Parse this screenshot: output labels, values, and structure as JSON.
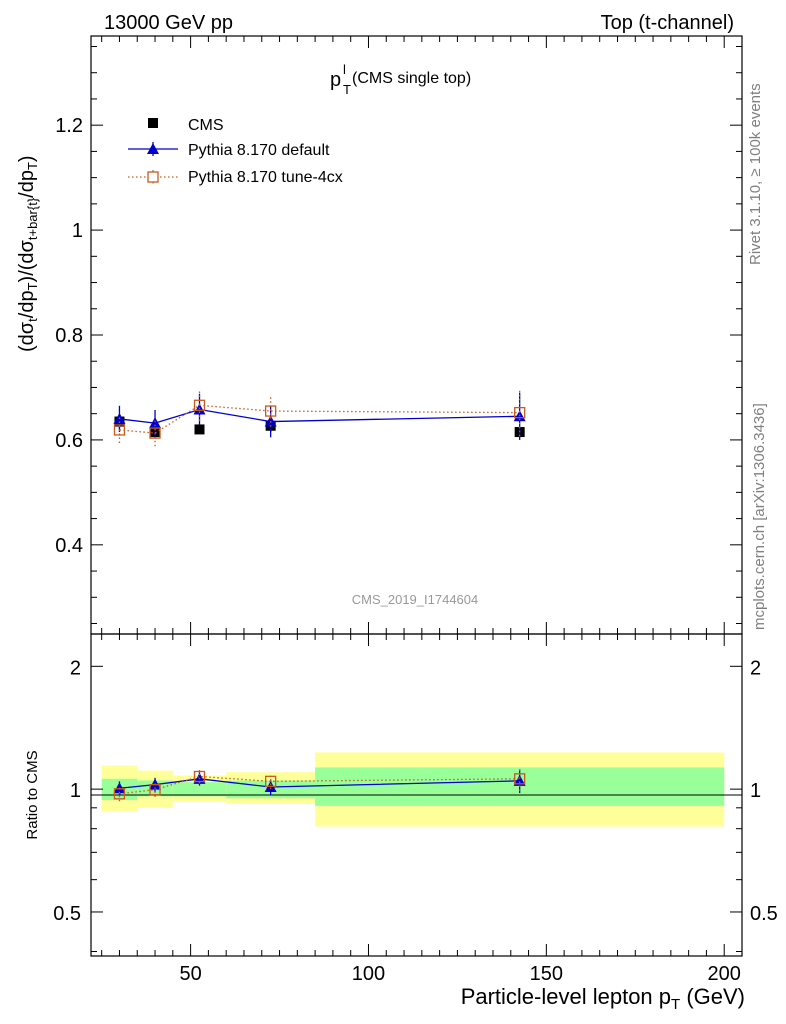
{
  "header": {
    "left": "13000 GeV pp",
    "right": "Top (t-channel)"
  },
  "side_labels": {
    "rivet": "Rivet 3.1.10, ≥ 100k events",
    "mcplots": "mcplots.cern.ch [arXiv:1306.3436]"
  },
  "chart_data": [
    {
      "type": "scatter",
      "title_main": "p",
      "title_sup": "l",
      "title_sub": "T",
      "title_rest": " (CMS single top)",
      "watermark": "CMS_2019_I1744604",
      "ylabel": "(dσ_t/dp_T)/(dσ_{t+bar{t}}/dp_T)",
      "xlabel": "Particle-level lepton p_T (GeV)",
      "xlim": [
        22,
        205
      ],
      "ylim": [
        0.23,
        1.37
      ],
      "x_ticks": [
        50,
        100,
        150,
        200
      ],
      "y_ticks": [
        0.4,
        0.6,
        0.8,
        1.0,
        1.2
      ],
      "y_tick_labels": [
        "0.4",
        "0.6",
        "0.8",
        "1",
        "1.2"
      ],
      "legend_position": "top-left",
      "x": [
        30,
        40,
        52.5,
        72.5,
        142.5
      ],
      "series": [
        {
          "name": "CMS",
          "color": "#000000",
          "marker": "filled-square",
          "values": [
            0.635,
            0.615,
            0.62,
            0.627,
            0.615
          ],
          "errors": [
            0.013,
            0.012,
            0.008,
            0.012,
            0.01
          ]
        },
        {
          "name": "Pythia 8.170 default",
          "color": "#0000cc",
          "marker": "filled-triangle",
          "line": "solid",
          "values": [
            0.64,
            0.632,
            0.658,
            0.635,
            0.645
          ],
          "errors": [
            0.025,
            0.025,
            0.03,
            0.03,
            0.045
          ]
        },
        {
          "name": "Pythia 8.170 tune-4cx",
          "color": "#c85a1e",
          "marker": "open-square",
          "line": "dotted",
          "values": [
            0.619,
            0.613,
            0.666,
            0.655,
            0.652
          ],
          "errors": [
            0.025,
            0.025,
            0.03,
            0.03,
            0.045
          ]
        }
      ]
    },
    {
      "type": "scatter",
      "panel": "ratio",
      "ylabel": "Ratio to CMS",
      "xlim": [
        22,
        205
      ],
      "ylim_log": [
        0.39,
        2.4
      ],
      "y_ticks": [
        0.5,
        1,
        2
      ],
      "y_tick_labels": [
        "0.5",
        "1",
        "2"
      ],
      "x_ticks": [
        50,
        100,
        150,
        200
      ],
      "x_tick_labels": [
        "50",
        "100",
        "150",
        "200"
      ],
      "bands": {
        "bin_edges": [
          25,
          35,
          45,
          60,
          85,
          200
        ],
        "inner": [
          [
            0.94,
            1.06
          ],
          [
            0.96,
            1.05
          ],
          [
            0.96,
            1.04
          ],
          [
            0.95,
            1.05
          ],
          [
            0.91,
            1.13
          ]
        ],
        "outer": [
          [
            0.88,
            1.14
          ],
          [
            0.9,
            1.11
          ],
          [
            0.93,
            1.08
          ],
          [
            0.92,
            1.1
          ],
          [
            0.81,
            1.23
          ]
        ],
        "inner_color": "#99ff99",
        "outer_color": "#ffff99"
      },
      "x": [
        30,
        40,
        52.5,
        72.5,
        142.5
      ],
      "series": [
        {
          "name": "Pythia 8.170 default",
          "color": "#0000cc",
          "values": [
            1.005,
            1.026,
            1.06,
            1.012,
            1.048
          ],
          "errors": [
            0.04,
            0.04,
            0.04,
            0.045,
            0.07
          ]
        },
        {
          "name": "Pythia 8.170 tune-4cx",
          "color": "#c85a1e",
          "values": [
            0.974,
            0.997,
            1.074,
            1.045,
            1.06
          ],
          "errors": [
            0.04,
            0.04,
            0.04,
            0.045,
            0.07
          ]
        }
      ]
    }
  ]
}
